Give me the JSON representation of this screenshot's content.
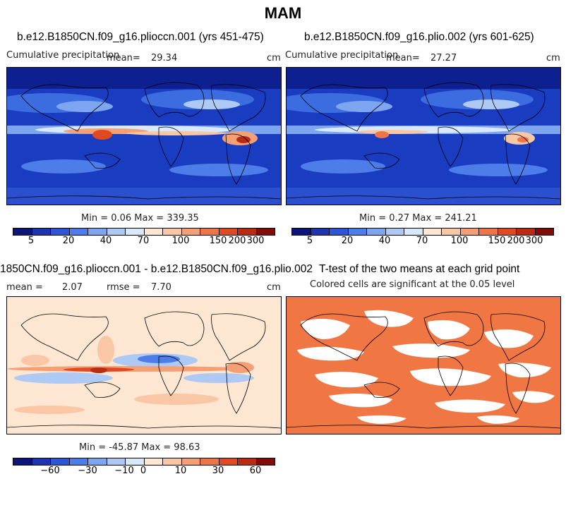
{
  "title": "MAM",
  "panels": {
    "p1": {
      "title": "b.e12.B1850CN.f09_g16.plioccn.001 (yrs 451-475)",
      "variable": "Cumulative precipitation",
      "mean_label": "mean=",
      "mean": "29.34",
      "units": "cm",
      "stats": "Min =    0.06  Max =  339.35"
    },
    "p2": {
      "title": "b.e12.B1850CN.f09_g16.plio.002 (yrs 601-625)",
      "variable": "Cumulative precipitation",
      "mean_label": "mean=",
      "mean": "27.27",
      "units": "cm",
      "stats": "Min =    0.27  Max =  241.21"
    },
    "p3": {
      "title": "1850CN.f09_g16.plioccn.001 - b.e12.B1850CN.f09_g16.plio.002",
      "mean_label": "mean =",
      "mean": "2.07",
      "rmse_label": "rmse =",
      "rmse": "7.70",
      "units": "cm",
      "stats": "Min = -45.87  Max =   98.63"
    },
    "p4": {
      "title": "T-test of the two means at each grid point",
      "subtitle": "Colored cells are significant at the 0.05 level"
    }
  },
  "colorbar_abs": {
    "colors": [
      "#0c1479",
      "#1f34b0",
      "#2e55d6",
      "#4d7de8",
      "#7ea5ef",
      "#adc9f4",
      "#d9e9fb",
      "#fde7d2",
      "#f9c7a6",
      "#f59f75",
      "#ee7449",
      "#e04a23",
      "#bb2a12",
      "#800b08"
    ],
    "tick_labels": [
      "5",
      "20",
      "40",
      "70",
      "100",
      "150",
      "200",
      "300"
    ]
  },
  "colorbar_diff": {
    "colors": [
      "#0c1479",
      "#1f34b0",
      "#2e55d6",
      "#4d7de8",
      "#7ea5ef",
      "#adc9f4",
      "#d9e9fb",
      "#fde7d2",
      "#f9c7a6",
      "#f59f75",
      "#ee7449",
      "#e04a23",
      "#bb2a12",
      "#800b08"
    ],
    "tick_labels": [
      "−60",
      "−30",
      "−10",
      "0",
      "10",
      "30",
      "60"
    ]
  },
  "significance_color": "#f07643"
}
